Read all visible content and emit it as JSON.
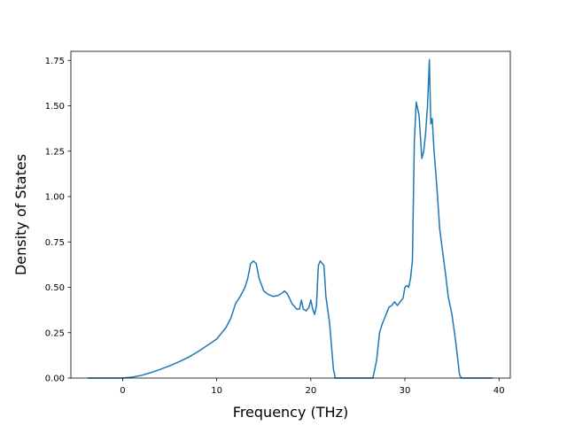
{
  "chart_data": {
    "type": "line",
    "title": "",
    "xlabel": "Frequency (THz)",
    "ylabel": "Density of States",
    "xlim": [
      -5.5,
      41.2
    ],
    "ylim": [
      0,
      1.8
    ],
    "x_ticks": [
      0,
      10,
      20,
      30,
      40
    ],
    "y_ticks": [
      0.0,
      0.25,
      0.5,
      0.75,
      1.0,
      1.25,
      1.5,
      1.75
    ],
    "x_tick_labels": [
      "0",
      "10",
      "20",
      "30",
      "40"
    ],
    "y_tick_labels": [
      "0.00",
      "0.25",
      "0.50",
      "0.75",
      "1.00",
      "1.25",
      "1.50",
      "1.75"
    ],
    "grid": false,
    "line_color": "#1f77b4",
    "series": [
      {
        "x": [
          -3.7,
          -2,
          0,
          1,
          2,
          3,
          4,
          5,
          6,
          7,
          8,
          9,
          10,
          11,
          11.5,
          12,
          12.5,
          13,
          13.3,
          13.6,
          13.9,
          14.2,
          14.5,
          15,
          15.5,
          16,
          16.5,
          17,
          17.2,
          17.5,
          18,
          18.5,
          18.8,
          19,
          19.2,
          19.5,
          19.8,
          20,
          20.2,
          20.4,
          20.6,
          20.8,
          21.0,
          21.4,
          21.6,
          22.0,
          22.4,
          22.6,
          22.8,
          23.2,
          24,
          25,
          26,
          26.6,
          27.0,
          27.3,
          27.6,
          28.0,
          28.3,
          28.6,
          28.9,
          29.2,
          29.5,
          29.8,
          30.0,
          30.2,
          30.4,
          30.6,
          30.8,
          31.0,
          31.2,
          31.5,
          31.8,
          32.0,
          32.2,
          32.4,
          32.6,
          32.75,
          32.9,
          33.1,
          33.4,
          33.7,
          34.0,
          34.3,
          34.6,
          35.0,
          35.4,
          35.8,
          36.0,
          37,
          38,
          39.3
        ],
        "y": [
          0,
          0,
          0,
          0.005,
          0.015,
          0.03,
          0.048,
          0.068,
          0.09,
          0.115,
          0.145,
          0.18,
          0.215,
          0.28,
          0.33,
          0.41,
          0.45,
          0.5,
          0.55,
          0.63,
          0.645,
          0.63,
          0.55,
          0.48,
          0.46,
          0.45,
          0.455,
          0.47,
          0.48,
          0.465,
          0.41,
          0.38,
          0.38,
          0.43,
          0.38,
          0.37,
          0.39,
          0.43,
          0.38,
          0.35,
          0.4,
          0.62,
          0.645,
          0.62,
          0.45,
          0.3,
          0.05,
          0.0,
          0.0,
          0.0,
          0.0,
          0.0,
          0.0,
          0.0,
          0.1,
          0.25,
          0.3,
          0.35,
          0.39,
          0.4,
          0.42,
          0.4,
          0.42,
          0.44,
          0.5,
          0.51,
          0.5,
          0.55,
          0.65,
          1.3,
          1.52,
          1.45,
          1.21,
          1.25,
          1.35,
          1.5,
          1.755,
          1.4,
          1.43,
          1.25,
          1.05,
          0.82,
          0.7,
          0.58,
          0.45,
          0.35,
          0.2,
          0.02,
          0.0,
          0.0,
          0.0,
          0.0
        ]
      }
    ]
  }
}
